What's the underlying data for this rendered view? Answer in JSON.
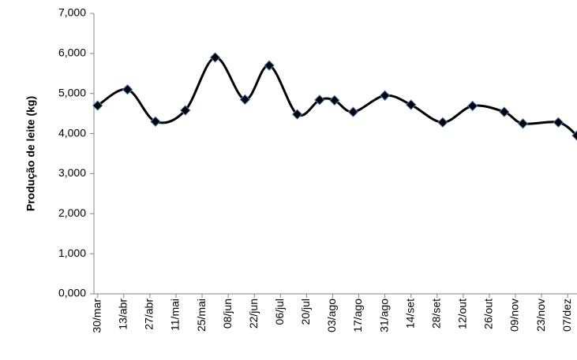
{
  "chart_data": {
    "type": "line",
    "y_label": "Produção de leite (kg)",
    "x": [
      0,
      16,
      31,
      47,
      63,
      79,
      92,
      107,
      119,
      127,
      137,
      154,
      168,
      185,
      201,
      218,
      228,
      247,
      257
    ],
    "series": [
      {
        "color": "#000000",
        "marker_color": "#000000",
        "marker_edge": "#4a7ebb",
        "values": [
          4700,
          5100,
          4300,
          4580,
          5900,
          4850,
          5700,
          4480,
          4840,
          4830,
          4540,
          4950,
          4720,
          4280,
          4690,
          4540,
          4250,
          4280,
          3950
        ]
      }
    ],
    "xlim": [
      -2,
      257
    ],
    "xticks": [
      {
        "value": 0,
        "label": "30/mar"
      },
      {
        "value": 14,
        "label": "13/abr"
      },
      {
        "value": 28,
        "label": "27/abr"
      },
      {
        "value": 42,
        "label": "11/mai"
      },
      {
        "value": 56,
        "label": "25/mai"
      },
      {
        "value": 70,
        "label": "08/jun"
      },
      {
        "value": 84,
        "label": "22/jun"
      },
      {
        "value": 98,
        "label": "06/jul"
      },
      {
        "value": 112,
        "label": "20/jul"
      },
      {
        "value": 126,
        "label": "03/ago"
      },
      {
        "value": 140,
        "label": "17/ago"
      },
      {
        "value": 154,
        "label": "31/ago"
      },
      {
        "value": 168,
        "label": "14/set"
      },
      {
        "value": 182,
        "label": "28/set"
      },
      {
        "value": 196,
        "label": "12/out"
      },
      {
        "value": 210,
        "label": "26/out"
      },
      {
        "value": 224,
        "label": "09/nov"
      },
      {
        "value": 238,
        "label": "23/nov"
      },
      {
        "value": 252,
        "label": "07/dez"
      }
    ],
    "ylim": [
      0,
      7000
    ],
    "yticks": [
      {
        "value": 0,
        "label": "0,000"
      },
      {
        "value": 1000,
        "label": "1,000"
      },
      {
        "value": 2000,
        "label": "2,000"
      },
      {
        "value": 3000,
        "label": "3,000"
      },
      {
        "value": 4000,
        "label": "4,000"
      },
      {
        "value": 5000,
        "label": "5,000"
      },
      {
        "value": 6000,
        "label": "6,000"
      },
      {
        "value": 7000,
        "label": "7,000"
      }
    ],
    "grid": false
  }
}
